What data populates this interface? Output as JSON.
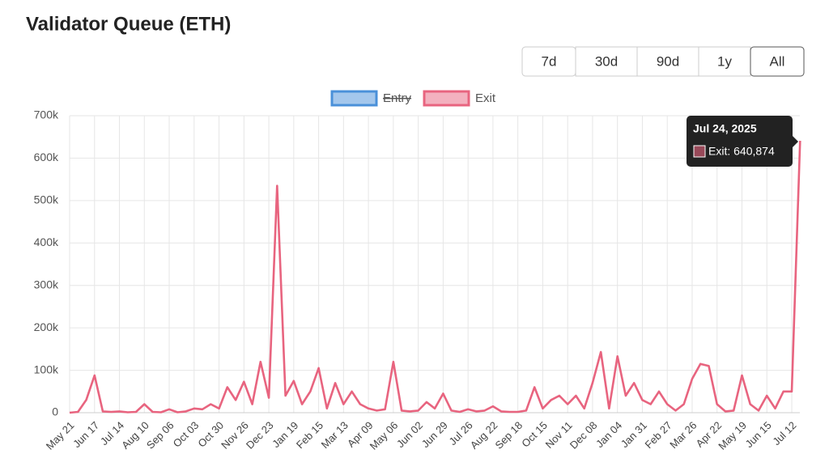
{
  "chart_data": {
    "type": "line",
    "title": "Validator Queue (ETH)",
    "buttons": [
      "7d",
      "30d",
      "90d",
      "1y",
      "All"
    ],
    "active_button": "All",
    "categories": [
      "May 21",
      null,
      null,
      "Jun 17",
      null,
      null,
      "Jul 14",
      null,
      null,
      "Aug 10",
      null,
      null,
      "Sep 06",
      null,
      null,
      "Oct 03",
      null,
      null,
      "Oct 30",
      null,
      null,
      "Nov 26",
      null,
      null,
      "Dec 23",
      null,
      null,
      "Jan 19",
      null,
      null,
      "Feb 15",
      null,
      null,
      "Mar 13",
      null,
      null,
      "Apr 09",
      null,
      null,
      "May 06",
      null,
      null,
      "Jun 02",
      null,
      null,
      "Jun 29",
      null,
      null,
      "Jul 26",
      null,
      null,
      "Aug 22",
      null,
      null,
      "Sep 18",
      null,
      null,
      "Oct 15",
      null,
      null,
      "Nov 11",
      null,
      null,
      "Dec 08",
      null,
      null,
      "Jan 04",
      null,
      null,
      "Jan 31",
      null,
      null,
      "Feb 27",
      null,
      null,
      "Mar 26",
      null,
      null,
      "Apr 22",
      null,
      null,
      "May 19",
      null,
      null,
      "Jun 15",
      null,
      null,
      "Jul 12",
      null
    ],
    "series": [
      {
        "name": "Entry",
        "color": "#4a90d9",
        "hidden": true
      },
      {
        "name": "Exit",
        "color": "#e8647f",
        "values": [
          0,
          2000,
          30000,
          88000,
          3000,
          2000,
          3000,
          1000,
          2000,
          20000,
          2000,
          1000,
          8000,
          1000,
          3000,
          10000,
          8000,
          20000,
          10000,
          60000,
          30000,
          73000,
          20000,
          120000,
          35000,
          535000,
          40000,
          75000,
          20000,
          50000,
          105000,
          10000,
          70000,
          20000,
          50000,
          20000,
          10000,
          5000,
          8000,
          120000,
          5000,
          3000,
          5000,
          25000,
          10000,
          45000,
          5000,
          2000,
          8000,
          3000,
          5000,
          15000,
          3000,
          2000,
          2000,
          5000,
          60000,
          10000,
          30000,
          40000,
          20000,
          40000,
          10000,
          70000,
          143000,
          10000,
          133000,
          40000,
          70000,
          30000,
          20000,
          50000,
          20000,
          5000,
          20000,
          80000,
          115000,
          110000,
          20000,
          3000,
          5000,
          88000,
          20000,
          5000,
          40000,
          10000,
          50000,
          50000,
          640874
        ]
      }
    ],
    "ylim": [
      0,
      700000
    ],
    "yticks": [
      0,
      {
        "value": 100000,
        "label": "100k"
      },
      {
        "value": 200000,
        "label": "200k"
      },
      {
        "value": 300000,
        "label": "300k"
      },
      {
        "value": 400000,
        "label": "400k"
      },
      {
        "value": 500000,
        "label": "500k"
      },
      {
        "value": 600000,
        "label": "600k"
      },
      {
        "value": 700000,
        "label": "700k"
      }
    ],
    "grid": true,
    "tooltip": {
      "title": "Jul 24, 2025",
      "text": "Exit: 640,874"
    }
  }
}
